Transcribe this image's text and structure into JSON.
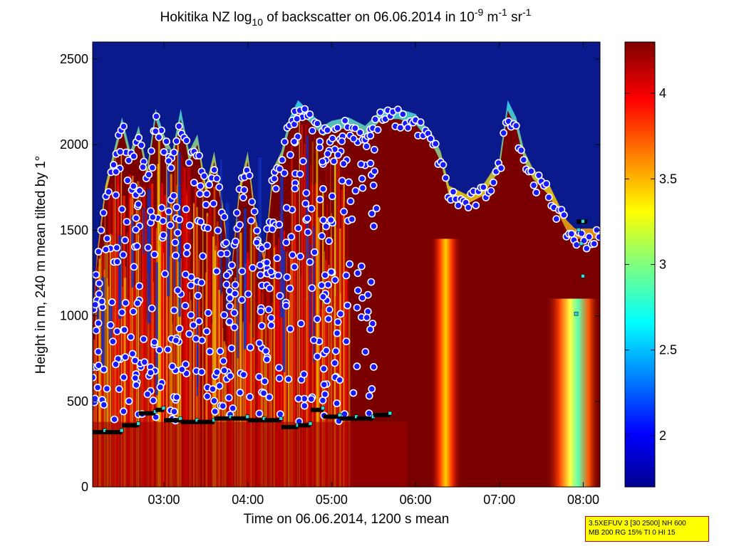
{
  "title": {
    "prefix": "Hokitika NZ log",
    "subscript": "10",
    "middle": " of backscatter on 06.06.2014 in 10",
    "exp1": "-9",
    "unit1": " m",
    "exp2": "-1",
    "unit2": " sr",
    "exp3": "-1"
  },
  "info_box": {
    "line1": "3.5XEFUV 3 [30 2500] NH 600",
    "line2": "MB 200 RG 15% TI 0 HI 15"
  },
  "colors": {
    "background_cloud": "#7a0000",
    "clear_sky": "#0a1a8c",
    "marker_fill": "#1a1aff",
    "marker_edge": "#ffffff",
    "layer_marker": "#000000",
    "square_marker": "#33dddd"
  },
  "chart_data": {
    "type": "heatmap",
    "title": "Hokitika NZ log10 of backscatter on 06.06.2014 in 10-9 m-1 sr-1",
    "xlabel": "Time on 06.06.2014, 1200 s mean",
    "ylabel": "Height in m, 240 m mean tilted by 1°",
    "x_unit": "hours since 00:00",
    "xlim": [
      2.15,
      8.2
    ],
    "ylim": [
      0,
      2600
    ],
    "xticks": [
      {
        "v": 3,
        "label": "03:00"
      },
      {
        "v": 4,
        "label": "04:00"
      },
      {
        "v": 5,
        "label": "05:00"
      },
      {
        "v": 6,
        "label": "06:00"
      },
      {
        "v": 7,
        "label": "07:00"
      },
      {
        "v": 8,
        "label": "08:00"
      }
    ],
    "yticks": [
      {
        "v": 0,
        "label": "0"
      },
      {
        "v": 500,
        "label": "500"
      },
      {
        "v": 1000,
        "label": "1000"
      },
      {
        "v": 1500,
        "label": "1500"
      },
      {
        "v": 2000,
        "label": "2000"
      },
      {
        "v": 2500,
        "label": "2500"
      }
    ],
    "colorbar": {
      "range": [
        1.7,
        4.3
      ],
      "ticks": [
        {
          "v": 2,
          "label": "2"
        },
        {
          "v": 2.5,
          "label": "2.5"
        },
        {
          "v": 3,
          "label": "3"
        },
        {
          "v": 3.5,
          "label": "3.5"
        },
        {
          "v": 4,
          "label": "4"
        }
      ]
    },
    "cloud_top_height": [
      [
        2.15,
        900
      ],
      [
        2.2,
        1300
      ],
      [
        2.3,
        1700
      ],
      [
        2.4,
        1900
      ],
      [
        2.5,
        2100
      ],
      [
        2.6,
        1900
      ],
      [
        2.7,
        2050
      ],
      [
        2.8,
        1800
      ],
      [
        2.9,
        2150
      ],
      [
        3.0,
        2000
      ],
      [
        3.1,
        1900
      ],
      [
        3.2,
        2150
      ],
      [
        3.3,
        1900
      ],
      [
        3.4,
        2000
      ],
      [
        3.5,
        1700
      ],
      [
        3.6,
        1900
      ],
      [
        3.7,
        1600
      ],
      [
        3.8,
        1200
      ],
      [
        3.9,
        1700
      ],
      [
        4.0,
        1900
      ],
      [
        4.1,
        1500
      ],
      [
        4.2,
        1300
      ],
      [
        4.3,
        1800
      ],
      [
        4.4,
        1900
      ],
      [
        4.5,
        2100
      ],
      [
        4.6,
        2200
      ],
      [
        4.7,
        2150
      ],
      [
        4.8,
        2100
      ],
      [
        4.9,
        2050
      ],
      [
        5.0,
        2080
      ],
      [
        5.2,
        2100
      ],
      [
        5.4,
        2050
      ],
      [
        5.6,
        2150
      ],
      [
        5.8,
        2150
      ],
      [
        6.0,
        2120
      ],
      [
        6.2,
        2000
      ],
      [
        6.3,
        1900
      ],
      [
        6.4,
        1700
      ],
      [
        6.6,
        1650
      ],
      [
        6.8,
        1700
      ],
      [
        7.0,
        1850
      ],
      [
        7.1,
        2200
      ],
      [
        7.2,
        2100
      ],
      [
        7.3,
        1900
      ],
      [
        7.4,
        1800
      ],
      [
        7.5,
        1750
      ],
      [
        7.6,
        1700
      ],
      [
        7.7,
        1600
      ],
      [
        7.8,
        1500
      ],
      [
        7.9,
        1450
      ],
      [
        8.0,
        1450
      ],
      [
        8.2,
        1450
      ]
    ],
    "cloud_base_layer": [
      [
        2.15,
        320
      ],
      [
        2.3,
        320
      ],
      [
        2.5,
        360
      ],
      [
        2.7,
        430
      ],
      [
        2.9,
        450
      ],
      [
        3.0,
        390
      ],
      [
        3.2,
        380
      ],
      [
        3.4,
        380
      ],
      [
        3.6,
        400
      ],
      [
        3.8,
        400
      ],
      [
        4.0,
        390
      ],
      [
        4.2,
        390
      ],
      [
        4.4,
        350
      ],
      [
        4.6,
        360
      ],
      [
        4.75,
        450
      ],
      [
        4.9,
        410
      ],
      [
        5.1,
        400
      ],
      [
        5.3,
        400
      ],
      [
        5.5,
        420
      ],
      [
        5.7,
        440
      ]
    ],
    "low_cloud_high_points": [
      [
        8.0,
        1550
      ],
      [
        7.95,
        1500
      ],
      [
        7.98,
        1420
      ],
      [
        8.0,
        1230
      ],
      [
        7.92,
        1010
      ]
    ]
  }
}
